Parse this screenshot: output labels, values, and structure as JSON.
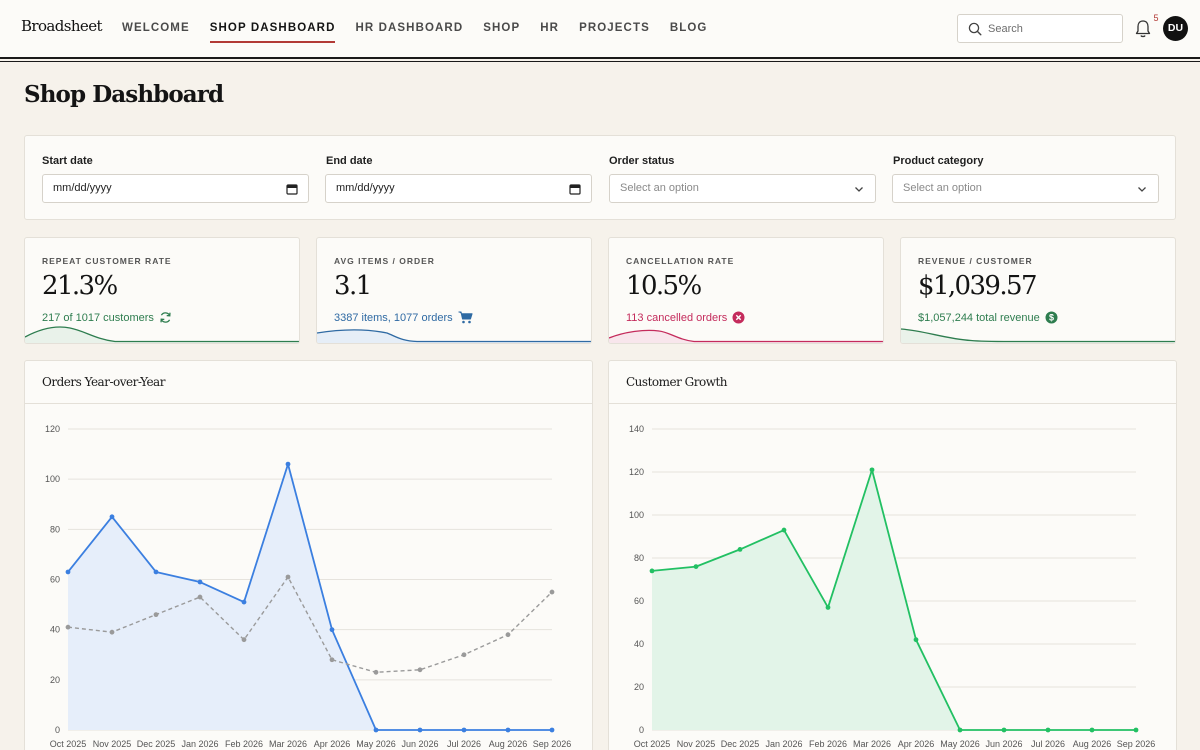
{
  "app": {
    "logo": "Broadsheet"
  },
  "nav": {
    "items": [
      "WELCOME",
      "SHOP DASHBOARD",
      "HR DASHBOARD",
      "SHOP",
      "HR",
      "PROJECTS",
      "BLOG"
    ],
    "active": "SHOP DASHBOARD"
  },
  "search": {
    "placeholder": "Search"
  },
  "notifications": {
    "count": "5"
  },
  "user": {
    "initials": "DU"
  },
  "page": {
    "title": "Shop Dashboard"
  },
  "filters": {
    "start_label": "Start date",
    "start_value": "mm/dd/yyyy",
    "end_label": "End date",
    "end_value": "mm/dd/yyyy",
    "status_label": "Order status",
    "status_placeholder": "Select an option",
    "category_label": "Product category",
    "category_placeholder": "Select an option"
  },
  "kpis": [
    {
      "label": "REPEAT CUSTOMER RATE",
      "value": "21.3%",
      "sub": "217 of 1017 customers",
      "icon": "refresh-icon",
      "color": "#2e7d4f"
    },
    {
      "label": "AVG ITEMS / ORDER",
      "value": "3.1",
      "sub": "3387 items, 1077 orders",
      "icon": "cart-icon",
      "color": "#2f6aa3"
    },
    {
      "label": "CANCELLATION RATE",
      "value": "10.5%",
      "sub": "113 cancelled orders",
      "icon": "x-circle-icon",
      "color": "#c42b5c"
    },
    {
      "label": "REVENUE / CUSTOMER",
      "value": "$1,039.57",
      "sub": "$1,057,244 total revenue",
      "icon": "dollar-circle-icon",
      "color": "#2e7d4f"
    }
  ],
  "chart_data": [
    {
      "type": "line",
      "title": "Orders Year-over-Year",
      "x": [
        "Oct 2025",
        "Nov 2025",
        "Dec 2025",
        "Jan 2026",
        "Feb 2026",
        "Mar 2026",
        "Apr 2026",
        "May 2026",
        "Jun 2026",
        "Jul 2026",
        "Aug 2026",
        "Sep 2026"
      ],
      "ylim": [
        0,
        120
      ],
      "yticks": [
        0,
        20,
        40,
        60,
        80,
        100,
        120
      ],
      "grid": true,
      "series": [
        {
          "values": [
            63,
            85,
            63,
            59,
            51,
            106,
            40,
            0,
            0,
            0,
            0,
            0
          ],
          "color": "#3b7fe0",
          "fill": "#e6eefa",
          "dashed": false
        },
        {
          "values": [
            41,
            39,
            46,
            53,
            36,
            61,
            28,
            23,
            24,
            30,
            38,
            55
          ],
          "color": "#9a9a9a",
          "dashed": true
        }
      ]
    },
    {
      "type": "area",
      "title": "Customer Growth",
      "x": [
        "Oct 2025",
        "Nov 2025",
        "Dec 2025",
        "Jan 2026",
        "Feb 2026",
        "Mar 2026",
        "Apr 2026",
        "May 2026",
        "Jun 2026",
        "Jul 2026",
        "Aug 2026",
        "Sep 2026"
      ],
      "ylim": [
        0,
        140
      ],
      "yticks": [
        0,
        20,
        40,
        60,
        80,
        100,
        120,
        140
      ],
      "grid": true,
      "series": [
        {
          "values": [
            74,
            76,
            84,
            93,
            57,
            121,
            42,
            0,
            0,
            0,
            0,
            0
          ],
          "color": "#22c063",
          "fill": "#e2f4e8",
          "dashed": false
        }
      ]
    }
  ]
}
